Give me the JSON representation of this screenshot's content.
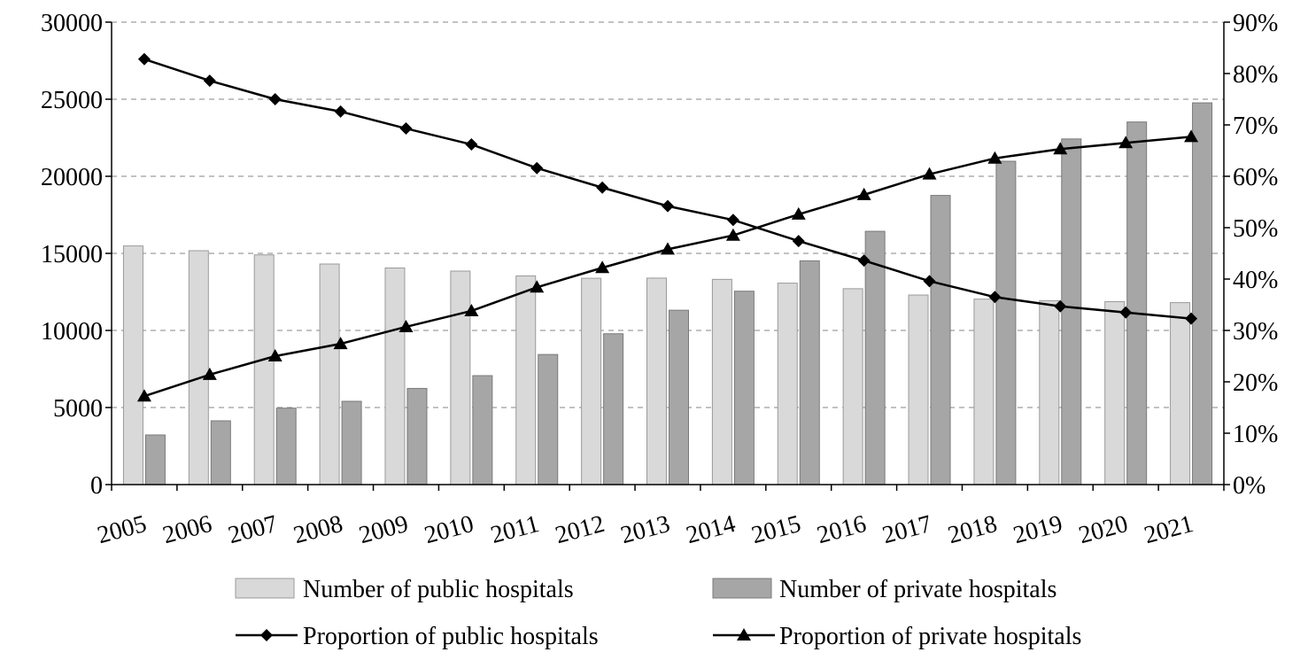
{
  "chart_data": {
    "type": "bar",
    "title": "",
    "xlabel": "",
    "ylabel": "",
    "categories": [
      "2005",
      "2006",
      "2007",
      "2008",
      "2009",
      "2010",
      "2011",
      "2012",
      "2013",
      "2014",
      "2015",
      "2016",
      "2017",
      "2018",
      "2019",
      "2020",
      "2021"
    ],
    "series": [
      {
        "name": "Number of public hospitals",
        "kind": "bar",
        "axis": "left",
        "color": "#d9d9d9",
        "values": [
          15483,
          15172,
          14900,
          14309,
          14051,
          13850,
          13539,
          13384,
          13396,
          13314,
          13069,
          12708,
          12297,
          12032,
          11930,
          11870,
          11804
        ]
      },
      {
        "name": "Number of private hospitals",
        "kind": "bar",
        "axis": "left",
        "color": "#a6a6a6",
        "values": [
          3220,
          4138,
          4961,
          5403,
          6240,
          7068,
          8440,
          9786,
          11313,
          12546,
          14518,
          16432,
          18759,
          20977,
          22424,
          23524,
          24766
        ]
      },
      {
        "name": "Proportion of public hospitals",
        "kind": "line",
        "axis": "right",
        "marker": "diamond",
        "color": "#000000",
        "values": [
          82.8,
          78.6,
          75.0,
          72.6,
          69.3,
          66.2,
          61.6,
          57.8,
          54.2,
          51.5,
          47.4,
          43.6,
          39.6,
          36.5,
          34.7,
          33.5,
          32.3
        ]
      },
      {
        "name": "Proportion of private hospitals",
        "kind": "line",
        "axis": "right",
        "marker": "triangle",
        "color": "#000000",
        "values": [
          17.2,
          21.4,
          25.0,
          27.4,
          30.7,
          33.8,
          38.4,
          42.2,
          45.8,
          48.5,
          52.6,
          56.4,
          60.4,
          63.5,
          65.3,
          66.5,
          67.7
        ]
      }
    ],
    "y_left": {
      "min": 0,
      "max": 30000,
      "ticks": [
        "0",
        "5000",
        "10000",
        "15000",
        "20000",
        "25000",
        "30000"
      ]
    },
    "y_right": {
      "min": 0,
      "max": 90,
      "ticks": [
        "0%",
        "10%",
        "20%",
        "30%",
        "40%",
        "50%",
        "60%",
        "70%",
        "80%",
        "90%"
      ]
    },
    "grid": true,
    "legend_position": "bottom"
  }
}
